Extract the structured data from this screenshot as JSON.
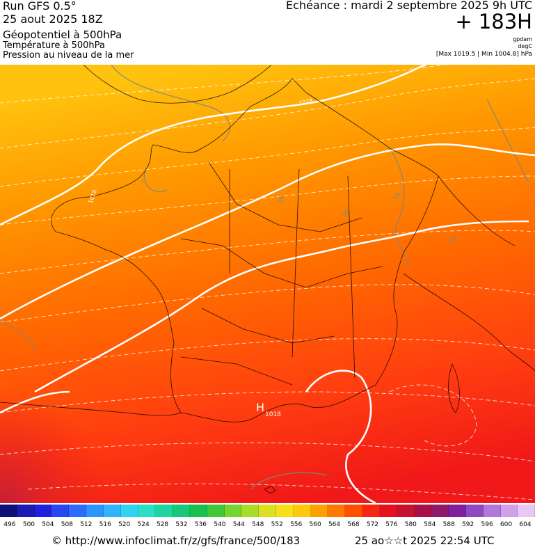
{
  "header": {
    "run": "Run GFS 0.5°",
    "run_date": "25 aout 2025 18Z",
    "field1": "Géopotentiel à 500hPa",
    "field2": "Température à 500hPa",
    "field3": "Pression au niveau de la mer",
    "echeance": "Echéance : mardi 2 septembre 2025 9h UTC",
    "lead": "+ 183H",
    "unit1": "gpdam",
    "unit2": "degC",
    "minmax": "[Max 1019.5 | Min 1004.8] hPa"
  },
  "map": {
    "labels": {
      "h_symbol": "H",
      "h_value": "1018",
      "isobar_top": "1018",
      "isobar_left": "1018",
      "iso16_a": "16",
      "iso16_b": "16",
      "iso16_c": "16",
      "iso16_d": "16",
      "iso_small": "-4"
    },
    "colors": {
      "top": "#ffc20e",
      "upper": "#ff9a00",
      "middle": "#ff6a00",
      "lower": "#ff3c10",
      "bottom": "#f01818",
      "corner": "#c42038"
    }
  },
  "scale": {
    "values": [
      "496",
      "500",
      "504",
      "508",
      "512",
      "516",
      "520",
      "524",
      "528",
      "532",
      "536",
      "540",
      "544",
      "548",
      "552",
      "556",
      "560",
      "564",
      "568",
      "572",
      "576",
      "580",
      "584",
      "588",
      "592",
      "596",
      "600",
      "604"
    ],
    "colors": [
      "#10107a",
      "#1c1cb4",
      "#2020e0",
      "#2848f4",
      "#2c6cfc",
      "#2c94fc",
      "#30b4fc",
      "#30d4f0",
      "#28e0c8",
      "#20d4a0",
      "#18c878",
      "#18c050",
      "#40c838",
      "#74d430",
      "#a8dc28",
      "#dce020",
      "#f8e018",
      "#ffc80c",
      "#ffa000",
      "#ff7800",
      "#ff5000",
      "#f82810",
      "#e81020",
      "#c81030",
      "#a81048",
      "#901868",
      "#8020a0",
      "#9048c0",
      "#b078d8",
      "#d0a0e8",
      "#e8c8f4"
    ]
  },
  "footer": {
    "url": "© http://www.infoclimat.fr/z/gfs/france/500/183",
    "timestamp": "25 ao☆☆t 2025 22:54 UTC"
  }
}
